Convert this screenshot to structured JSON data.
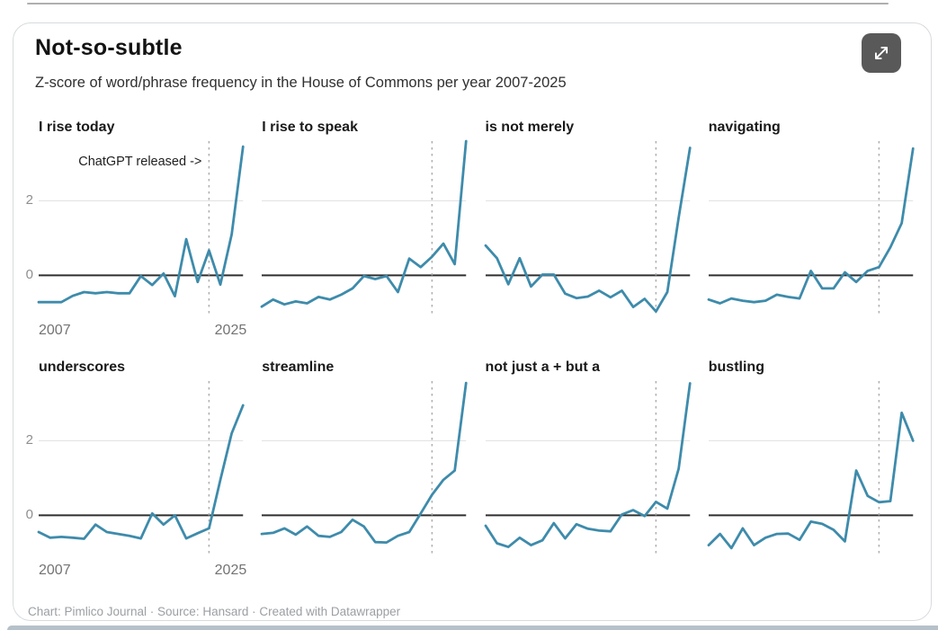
{
  "page": {
    "title": "Not-so-subtle",
    "subtitle": "Z-score of word/phrase frequency in the House of Commons per year 2007-2025",
    "footer": "Chart: Pimlico Journal · Source: Hansard · Created with Datawrapper"
  },
  "toolbar": {
    "expand_icon": "expand-arrows-icon"
  },
  "colors": {
    "line": "#3e8bab",
    "zero_axis": "#2f2f2f",
    "gridline": "#e0e0e0",
    "dashed_event_line": "#aeaeae",
    "button_bg": "#595959",
    "axis_label": "#737373",
    "footer_text": "#9b9fa3"
  },
  "chart_data": {
    "type": "line",
    "layout": "small-multiples-2x4",
    "title": "Not-so-subtle",
    "subtitle": "Z-score of word/phrase frequency in the House of Commons per year 2007-2025",
    "x": [
      2007,
      2008,
      2009,
      2010,
      2011,
      2012,
      2013,
      2014,
      2015,
      2016,
      2017,
      2018,
      2019,
      2020,
      2021,
      2022,
      2023,
      2024,
      2025
    ],
    "series": [
      {
        "name": "I rise today",
        "values": [
          -0.72,
          -0.72,
          -0.72,
          -0.55,
          -0.45,
          -0.48,
          -0.45,
          -0.48,
          -0.48,
          -0.02,
          -0.26,
          0.05,
          -0.56,
          0.97,
          -0.18,
          0.67,
          -0.25,
          1.1,
          3.45
        ]
      },
      {
        "name": "I rise to speak",
        "values": [
          -0.84,
          -0.65,
          -0.78,
          -0.7,
          -0.75,
          -0.58,
          -0.65,
          -0.52,
          -0.35,
          -0.02,
          -0.1,
          -0.02,
          -0.45,
          0.45,
          0.22,
          0.5,
          0.85,
          0.3,
          3.6
        ]
      },
      {
        "name": "is not merely",
        "values": [
          0.8,
          0.46,
          -0.24,
          0.46,
          -0.3,
          0.02,
          0.02,
          -0.49,
          -0.61,
          -0.57,
          -0.41,
          -0.59,
          -0.41,
          -0.85,
          -0.63,
          -0.97,
          -0.45,
          1.55,
          3.42
        ]
      },
      {
        "name": "navigating",
        "values": [
          -0.65,
          -0.75,
          -0.62,
          -0.68,
          -0.72,
          -0.68,
          -0.52,
          -0.58,
          -0.62,
          0.12,
          -0.35,
          -0.35,
          0.08,
          -0.18,
          0.12,
          0.22,
          0.75,
          1.4,
          3.4
        ]
      },
      {
        "name": "underscores",
        "values": [
          -0.45,
          -0.6,
          -0.58,
          -0.6,
          -0.63,
          -0.25,
          -0.45,
          -0.5,
          -0.55,
          -0.62,
          0.05,
          -0.25,
          0.0,
          -0.62,
          -0.48,
          -0.35,
          0.95,
          2.2,
          2.95
        ]
      },
      {
        "name": "streamline",
        "values": [
          -0.5,
          -0.47,
          -0.35,
          -0.52,
          -0.3,
          -0.55,
          -0.58,
          -0.45,
          -0.12,
          -0.3,
          -0.72,
          -0.73,
          -0.55,
          -0.45,
          0.05,
          0.55,
          0.95,
          1.2,
          3.55
        ]
      },
      {
        "name": "not just a + but a",
        "values": [
          -0.28,
          -0.75,
          -0.85,
          -0.6,
          -0.8,
          -0.67,
          -0.21,
          -0.62,
          -0.24,
          -0.36,
          -0.41,
          -0.43,
          0.02,
          0.14,
          -0.02,
          0.36,
          0.18,
          1.25,
          3.54
        ]
      },
      {
        "name": "bustling",
        "values": [
          -0.8,
          -0.5,
          -0.88,
          -0.35,
          -0.8,
          -0.6,
          -0.5,
          -0.49,
          -0.66,
          -0.17,
          -0.23,
          -0.39,
          -0.7,
          1.2,
          0.52,
          0.35,
          0.38,
          2.75,
          2.0
        ]
      }
    ],
    "event_line": {
      "x": 2022,
      "label": "ChatGPT released ->",
      "label_shown_on_series": "I rise today",
      "style": "dashed"
    },
    "ylim": [
      -1.1,
      3.6
    ],
    "y_ticks": [
      2,
      0
    ],
    "y_tick_labels": [
      "2",
      "0"
    ],
    "x_tick_labels": [
      "2007",
      "2025"
    ],
    "x_ticks_shown_on": "first column only",
    "grid": "horizontal line at 2, solid dark baseline at 0",
    "legend_position": "none"
  }
}
